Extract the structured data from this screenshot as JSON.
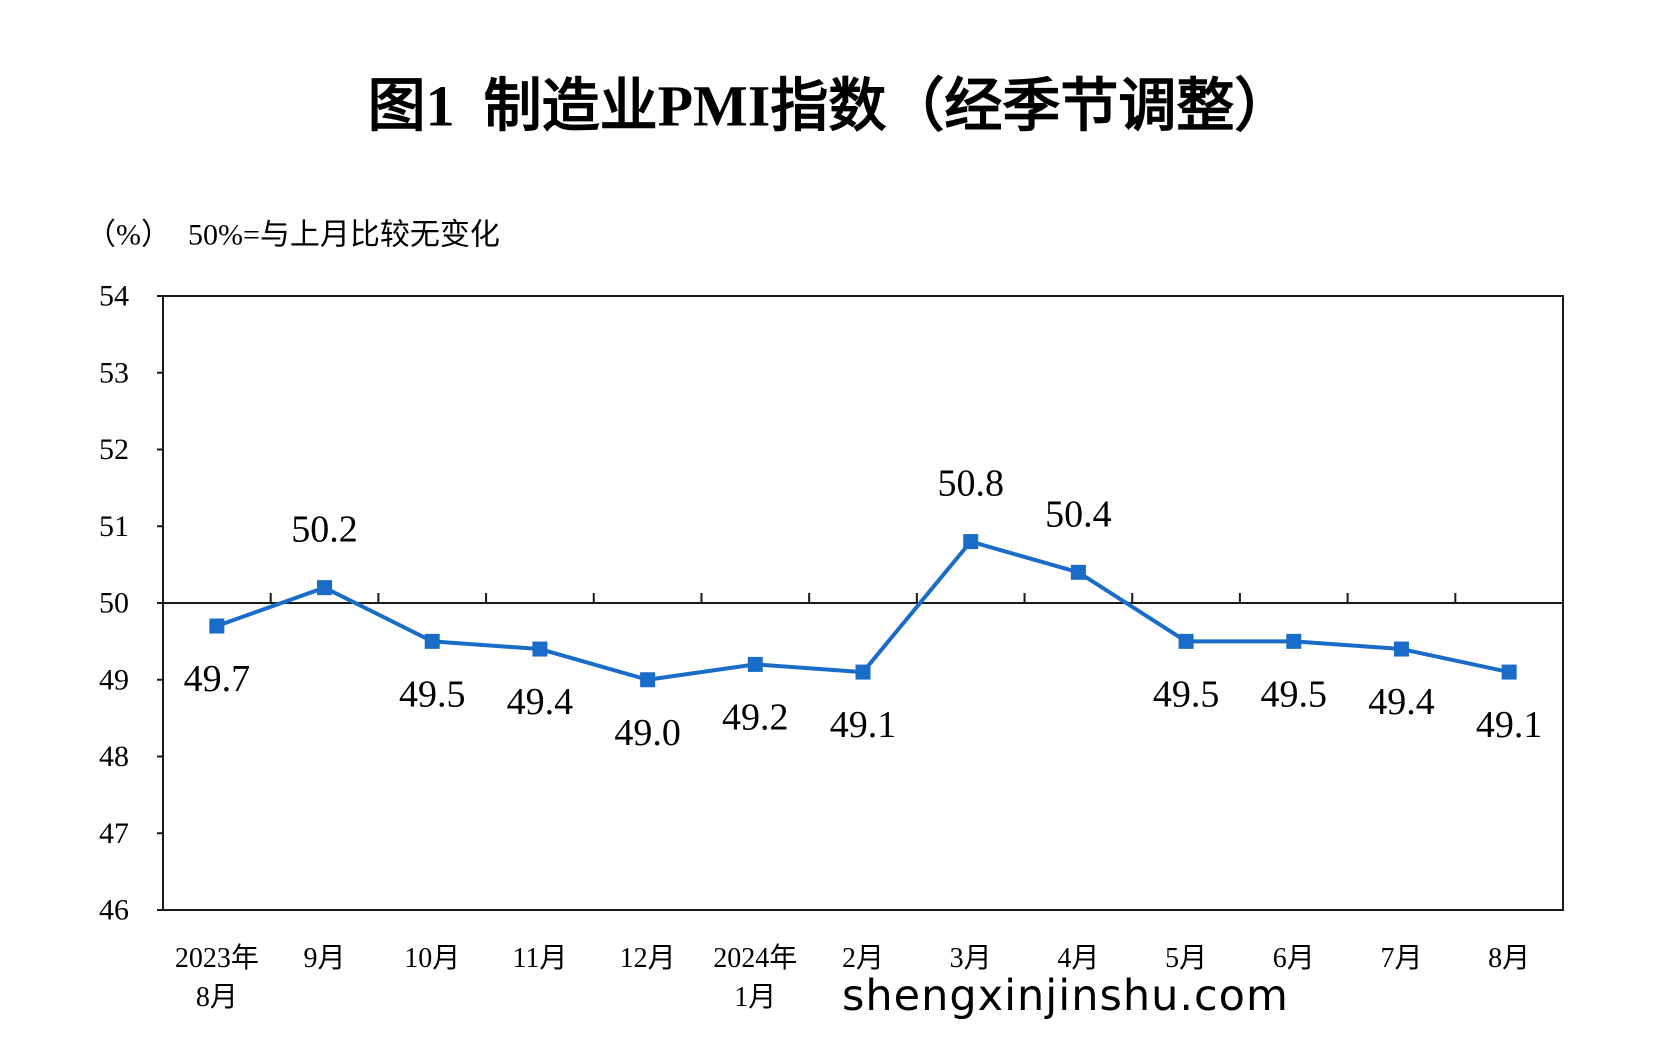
{
  "chart_data": {
    "type": "line",
    "title": "图1  制造业PMI指数（经季节调整）",
    "ylabel": "（%）",
    "note": "50%=与上月比较无变化",
    "categories": [
      "2023年\n8月",
      "9月",
      "10月",
      "11月",
      "12月",
      "2024年\n1月",
      "2月",
      "3月",
      "4月",
      "5月",
      "6月",
      "7月",
      "8月"
    ],
    "series": [
      {
        "values": [
          49.7,
          50.2,
          49.5,
          49.4,
          49.0,
          49.2,
          49.1,
          50.8,
          50.4,
          49.5,
          49.5,
          49.4,
          49.1
        ]
      }
    ],
    "ylim": [
      46,
      54
    ],
    "yticks": [
      46,
      47,
      48,
      49,
      50,
      51,
      52,
      53,
      54
    ],
    "reference_line": 50,
    "grid": false,
    "legend": "none"
  },
  "watermark": "shengxinjinshu.com",
  "colors": {
    "series": "#1a6cc9",
    "axis": "#1a1a1a",
    "text": "#000000"
  }
}
